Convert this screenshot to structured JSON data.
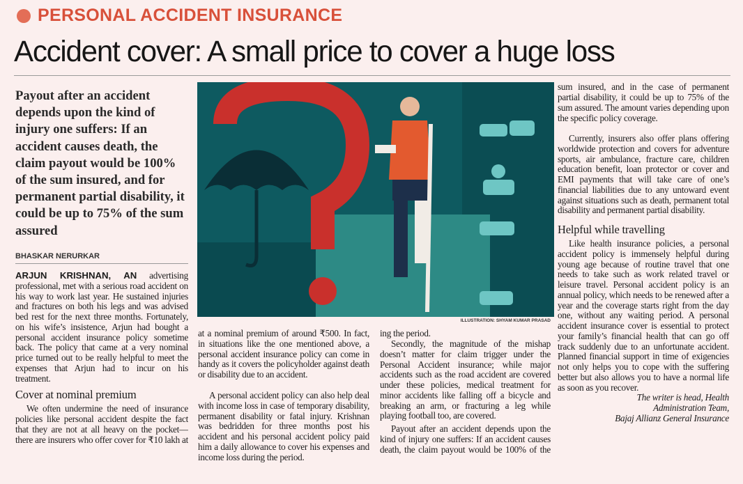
{
  "kicker": "PERSONAL ACCIDENT INSURANCE",
  "headline": "Accident cover: A small price to cover a huge loss",
  "intro": "Payout after an accident depends upon the kind of injury one suffers: If an accident causes death, the claim payout would be 100% of the sum insured, and for permanent partial disability, it could be up to 75% of the sum assured",
  "byline": "BHASKAR NERURKAR",
  "illustration_credit": "ILLUSTRATION: SHYAM KUMAR PRASAD",
  "colors": {
    "accent": "#d8503a",
    "dot": "#e36e57",
    "paper": "#fbefee",
    "illustration_bg": "#0e5a60",
    "question_mark": "#c9302c"
  },
  "body": {
    "lead_in": "ARJUN KRISHNAN, AN",
    "p1": " advertising professional, met with a serious road accident on his way to work last year. He sustained injuries and fractures on both his legs and was advised bed rest for the next three months. Fortunately, on his wife’s insistence, Arjun had bought a personal accident insurance policy sometime back. The policy that came at a very nominal price turned out to be really helpful to meet the expenses that Arjun had to incur on his treatment.",
    "h1": "Cover at nominal premium",
    "p2": "We often undermine the need of insurance policies like personal accident despite the fact that they are not at all heavy on the pocket—there are insurers who offer cover for ₹10 lakh at a nominal premium of around ₹500. In fact, in situations like the one mentioned above, a personal accident insurance policy can come in handy as it covers the policyholder against death or disability due to an accident.",
    "p3": "A personal accident policy can also help deal with income loss in case of temporary disability, permanent disability or fatal injury. Krishnan was bedridden for three months post his accident and his personal accident policy paid him a daily allowance to cover his expenses and income loss during the period.",
    "p4": "Secondly, the magnitude of the mishap doesn’t matter for claim trigger under the Personal Accident insurance; while major accidents such as the road accident are covered under these policies, medical treatment for minor accidents like falling off a bicycle and breaking an arm, or fracturing a leg while playing football too, are covered.",
    "p5": "Payout after an accident depends upon the kind of injury one suffers: If an accident causes death, the claim payout would be 100% of the sum insured, and in the case of permanent partial disability, it could be up to 75% of the sum assured. The amount varies depending upon the specific policy coverage.",
    "p6": "Currently, insurers also offer plans offering worldwide protection and covers for adventure sports, air ambulance, fracture care, children education benefit, loan protector or cover and EMI payments that will take care of one’s financial liabilities due to any untoward event against situations such as death, permanent total disability and permanent partial disability.",
    "h2": "Helpful while travelling",
    "p7": "Like health insurance policies, a personal accident policy is immensely helpful during young age because of routine travel that one needs to take such as work related travel or leisure travel. Personal accident policy is an annual policy, which needs to be renewed after a year and the coverage starts right from the day one, without any waiting period. A personal accident insurance cover is essential to protect your family’s financial health that can go off track suddenly due to an unfortunate accident. Planned financial support in time of exigencies not only helps you to cope with the suffering better but also allows you to have a normal life as soon as you recover.",
    "sig1": "The writer is head, Health",
    "sig2": "Administration Team,",
    "sig3": "Bajaj Allianz General Insurance"
  }
}
